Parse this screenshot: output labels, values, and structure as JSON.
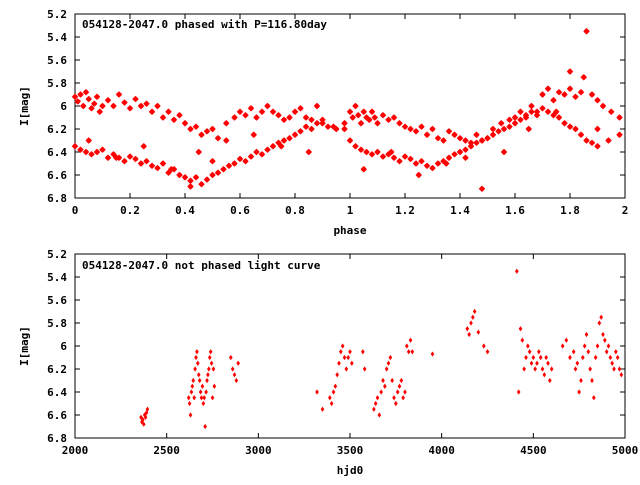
{
  "chart_data": [
    {
      "type": "scatter",
      "title": "054128-2047.0 phased with P=116.80day",
      "xlabel": "phase",
      "ylabel": "I[mag]",
      "xlim": [
        0,
        2
      ],
      "ylim": [
        6.8,
        5.2
      ],
      "y_inverted": true,
      "grid": false,
      "marker": "star",
      "color": "#ff0000",
      "xticks": [
        "0",
        "0.2",
        "0.4",
        "0.6",
        "0.8",
        "1",
        "1.2",
        "1.4",
        "1.6",
        "1.8",
        "2"
      ],
      "yticks": [
        "5.2",
        "5.4",
        "5.6",
        "5.8",
        "6",
        "6.2",
        "6.4",
        "6.6",
        "6.8"
      ],
      "series": [
        {
          "x": [
            0.0,
            0.01,
            0.02,
            0.03,
            0.04,
            0.05,
            0.06,
            0.07,
            0.08,
            0.09,
            0.1,
            0.12,
            0.14,
            0.16,
            0.18,
            0.2,
            0.22,
            0.24,
            0.26,
            0.28,
            0.3,
            0.32,
            0.34,
            0.36,
            0.38,
            0.4,
            0.42,
            0.44,
            0.46,
            0.48,
            0.5,
            0.52,
            0.55,
            0.58,
            0.6,
            0.62,
            0.64,
            0.66,
            0.68,
            0.7,
            0.72,
            0.74,
            0.76,
            0.78,
            0.8,
            0.82,
            0.84,
            0.86,
            0.88,
            0.9,
            0.92,
            0.95,
            0.98,
            0.0,
            0.02,
            0.04,
            0.06,
            0.08,
            0.1,
            0.12,
            0.14,
            0.16,
            0.18,
            0.2,
            0.22,
            0.24,
            0.26,
            0.28,
            0.3,
            0.32,
            0.34,
            0.36,
            0.38,
            0.4,
            0.42,
            0.44,
            0.46,
            0.48,
            0.5,
            0.52,
            0.54,
            0.56,
            0.58,
            0.6,
            0.62,
            0.64,
            0.66,
            0.68,
            0.7,
            0.72,
            0.74,
            0.76,
            0.78,
            0.8,
            0.82,
            0.84,
            0.86,
            0.88,
            0.9,
            0.94,
            0.98,
            0.05,
            0.15,
            0.25,
            0.35,
            0.42,
            0.45,
            0.5,
            0.55,
            0.65,
            0.75,
            0.85,
            1.0,
            1.01,
            1.02,
            1.03,
            1.04,
            1.05,
            1.06,
            1.07,
            1.08,
            1.09,
            1.1,
            1.12,
            1.14,
            1.16,
            1.18,
            1.2,
            1.22,
            1.24,
            1.26,
            1.28,
            1.3,
            1.32,
            1.34,
            1.36,
            1.38,
            1.4,
            1.42,
            1.44,
            1.46,
            1.48,
            1.5,
            1.52,
            1.55,
            1.58,
            1.6,
            1.62,
            1.64,
            1.66,
            1.68,
            1.7,
            1.72,
            1.74,
            1.76,
            1.78,
            1.8,
            1.82,
            1.84,
            1.86,
            1.88,
            1.9,
            1.92,
            1.95,
            1.98,
            1.0,
            1.02,
            1.04,
            1.06,
            1.08,
            1.1,
            1.12,
            1.14,
            1.16,
            1.18,
            1.2,
            1.22,
            1.24,
            1.26,
            1.28,
            1.3,
            1.32,
            1.34,
            1.36,
            1.38,
            1.4,
            1.42,
            1.44,
            1.46,
            1.48,
            1.5,
            1.52,
            1.54,
            1.56,
            1.58,
            1.6,
            1.62,
            1.64,
            1.66,
            1.68,
            1.7,
            1.72,
            1.74,
            1.76,
            1.78,
            1.8,
            1.82,
            1.84,
            1.86,
            1.88,
            1.9,
            1.94,
            1.98,
            1.05,
            1.15,
            1.25,
            1.35,
            1.42,
            1.48,
            1.56,
            1.65,
            1.75,
            1.8,
            1.85,
            1.9
          ],
          "y": [
            5.92,
            5.96,
            5.9,
            6.0,
            5.88,
            5.94,
            6.02,
            5.98,
            5.92,
            6.05,
            6.0,
            5.95,
            6.0,
            5.9,
            5.97,
            6.02,
            5.94,
            6.0,
            5.98,
            6.05,
            6.0,
            6.1,
            6.05,
            6.12,
            6.08,
            6.15,
            6.2,
            6.18,
            6.25,
            6.22,
            6.2,
            6.28,
            6.15,
            6.1,
            6.05,
            6.08,
            6.02,
            6.1,
            6.05,
            6.0,
            6.05,
            6.08,
            6.12,
            6.1,
            6.05,
            6.02,
            6.1,
            6.12,
            6.0,
            6.15,
            6.18,
            6.2,
            6.15,
            6.35,
            6.38,
            6.4,
            6.42,
            6.4,
            6.38,
            6.45,
            6.42,
            6.45,
            6.48,
            6.44,
            6.46,
            6.5,
            6.48,
            6.52,
            6.54,
            6.5,
            6.58,
            6.55,
            6.6,
            6.62,
            6.65,
            6.62,
            6.68,
            6.64,
            6.6,
            6.58,
            6.55,
            6.52,
            6.5,
            6.46,
            6.48,
            6.44,
            6.4,
            6.42,
            6.38,
            6.35,
            6.32,
            6.3,
            6.28,
            6.25,
            6.22,
            6.18,
            6.2,
            6.15,
            6.12,
            6.18,
            6.2,
            6.3,
            6.45,
            6.35,
            6.55,
            6.7,
            6.4,
            6.48,
            6.3,
            6.25,
            6.35,
            6.4,
            6.05,
            6.1,
            6.0,
            6.08,
            6.15,
            6.05,
            6.1,
            6.12,
            6.05,
            6.1,
            6.15,
            6.08,
            6.12,
            6.1,
            6.15,
            6.18,
            6.2,
            6.22,
            6.18,
            6.25,
            6.2,
            6.28,
            6.3,
            6.22,
            6.25,
            6.28,
            6.3,
            6.32,
            6.25,
            6.3,
            6.28,
            6.2,
            6.15,
            6.12,
            6.1,
            6.05,
            6.08,
            6.0,
            6.05,
            5.9,
            5.85,
            5.95,
            5.88,
            5.9,
            5.85,
            5.92,
            5.88,
            5.35,
            5.9,
            5.95,
            6.0,
            6.05,
            6.1,
            6.3,
            6.35,
            6.38,
            6.4,
            6.42,
            6.4,
            6.44,
            6.42,
            6.45,
            6.48,
            6.44,
            6.46,
            6.5,
            6.48,
            6.52,
            6.54,
            6.5,
            6.48,
            6.45,
            6.42,
            6.4,
            6.38,
            6.35,
            6.32,
            6.3,
            6.28,
            6.25,
            6.22,
            6.2,
            6.18,
            6.15,
            6.12,
            6.1,
            6.05,
            6.08,
            6.02,
            6.05,
            6.08,
            6.1,
            6.15,
            6.18,
            6.2,
            6.25,
            6.3,
            6.32,
            6.35,
            6.3,
            6.25,
            6.55,
            6.4,
            6.6,
            6.5,
            6.45,
            6.72,
            6.4,
            6.2,
            6.05,
            5.7,
            5.75,
            6.2
          ]
        }
      ]
    },
    {
      "type": "scatter",
      "title": "054128-2047.0 not phased light curve",
      "xlabel": "hjd0",
      "ylabel": "I[mag]",
      "xlim": [
        2000,
        5000
      ],
      "ylim": [
        6.8,
        5.2
      ],
      "y_inverted": true,
      "grid": false,
      "marker": "diamond",
      "color": "#ff0000",
      "xticks": [
        "2000",
        "2500",
        "3000",
        "3500",
        "4000",
        "4500",
        "5000"
      ],
      "yticks": [
        "5.2",
        "5.4",
        "5.6",
        "5.8",
        "6",
        "6.2",
        "6.4",
        "6.6",
        "6.8"
      ],
      "series": [
        {
          "x": [
            2360,
            2365,
            2370,
            2375,
            2380,
            2385,
            2390,
            2395,
            2620,
            2625,
            2630,
            2635,
            2640,
            2645,
            2650,
            2655,
            2660,
            2665,
            2670,
            2675,
            2680,
            2685,
            2690,
            2695,
            2700,
            2705,
            2710,
            2715,
            2720,
            2725,
            2730,
            2735,
            2740,
            2745,
            2750,
            2755,
            2760,
            2850,
            2860,
            2870,
            2880,
            2890,
            3320,
            3350,
            3390,
            3400,
            3410,
            3420,
            3430,
            3440,
            3450,
            3460,
            3470,
            3480,
            3490,
            3500,
            3510,
            3570,
            3580,
            3630,
            3640,
            3650,
            3660,
            3670,
            3680,
            3690,
            3700,
            3710,
            3720,
            3730,
            3740,
            3750,
            3760,
            3770,
            3780,
            3790,
            3800,
            3810,
            3820,
            3830,
            3840,
            3950,
            4140,
            4150,
            4160,
            4170,
            4180,
            4200,
            4230,
            4250,
            4410,
            4420,
            4430,
            4440,
            4450,
            4460,
            4470,
            4480,
            4490,
            4500,
            4510,
            4520,
            4530,
            4540,
            4550,
            4560,
            4570,
            4580,
            4590,
            4600,
            4660,
            4680,
            4700,
            4720,
            4730,
            4740,
            4750,
            4760,
            4770,
            4780,
            4790,
            4800,
            4810,
            4820,
            4830,
            4840,
            4850,
            4860,
            4870,
            4880,
            4890,
            4900,
            4910,
            4920,
            4930,
            4940,
            4950,
            4960,
            4970,
            4980
          ],
          "y": [
            6.62,
            6.66,
            6.64,
            6.68,
            6.6,
            6.62,
            6.58,
            6.55,
            6.45,
            6.5,
            6.6,
            6.4,
            6.35,
            6.3,
            6.45,
            6.2,
            6.1,
            6.05,
            6.15,
            6.25,
            6.3,
            6.4,
            6.45,
            6.35,
            6.5,
            6.45,
            6.7,
            6.4,
            6.3,
            6.25,
            6.2,
            6.1,
            6.05,
            6.15,
            6.45,
            6.2,
            6.35,
            6.1,
            6.2,
            6.25,
            6.3,
            6.15,
            6.4,
            6.55,
            6.45,
            6.5,
            6.4,
            6.35,
            6.25,
            6.15,
            6.05,
            6.0,
            6.1,
            6.2,
            6.1,
            6.05,
            6.15,
            6.05,
            6.2,
            6.55,
            6.5,
            6.45,
            6.6,
            6.4,
            6.3,
            6.35,
            6.2,
            6.15,
            6.1,
            6.3,
            6.45,
            6.5,
            6.4,
            6.35,
            6.3,
            6.45,
            6.4,
            6.0,
            6.05,
            5.95,
            6.05,
            6.07,
            5.85,
            5.9,
            5.8,
            5.75,
            5.7,
            5.88,
            6.0,
            6.05,
            5.35,
            6.4,
            5.85,
            5.95,
            6.2,
            6.1,
            6.0,
            6.05,
            6.15,
            6.1,
            6.2,
            6.15,
            6.05,
            6.1,
            6.2,
            6.25,
            6.1,
            6.15,
            6.3,
            6.2,
            6.0,
            5.95,
            6.1,
            6.05,
            6.2,
            6.15,
            6.4,
            6.3,
            6.1,
            6.0,
            5.9,
            6.05,
            6.2,
            6.3,
            6.45,
            6.1,
            6.0,
            5.8,
            5.75,
            5.9,
            5.95,
            6.05,
            6.0,
            6.1,
            6.15,
            6.2,
            6.05,
            6.1,
            6.2,
            6.25
          ]
        }
      ]
    }
  ]
}
